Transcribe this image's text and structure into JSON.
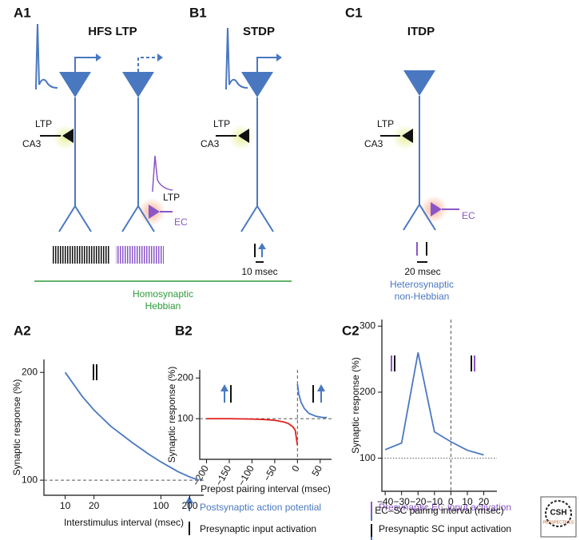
{
  "panel_labels": [
    "A1",
    "B1",
    "C1",
    "A2",
    "B2",
    "C2"
  ],
  "diagram": {
    "a1_title": "HFS LTP",
    "b1_title": "STDP",
    "c1_title": "ITDP",
    "ltp": "LTP",
    "ca3": "CA3",
    "ec": "EC",
    "scale_b": "10 msec",
    "scale_c": "20 msec",
    "homosynaptic": "Homosynaptic",
    "hebbian": "Hebbian",
    "heterosynaptic": "Heterosynaptic",
    "non_hebbian": "non-Hebbian"
  },
  "legend": [
    "Postsynaptic action potential",
    "Presynaptic input activation",
    "Presynaptic EC input activation",
    "Presynaptic SC input activation"
  ],
  "logo": {
    "name": "CSH",
    "sub": "PERSPECTIVES"
  },
  "chart_data": [
    {
      "type": "line",
      "x_label": "Interstimulus interval (msec)",
      "y_label": "Synaptic response (%)",
      "xscale": "log",
      "xlim": [
        6,
        280
      ],
      "ylim": [
        86,
        212
      ],
      "xticks": [
        10,
        20,
        100,
        200
      ],
      "yticks": [
        100,
        200
      ],
      "hline": 100,
      "series": [
        {
          "color": "#4a78c0",
          "x": [
            10,
            15,
            20,
            30,
            50,
            75,
            100,
            150,
            200,
            250
          ],
          "values": [
            200,
            178,
            165,
            150,
            135,
            124,
            117,
            108,
            103,
            100
          ]
        }
      ]
    },
    {
      "type": "line",
      "x_label": "Prepost pairing interval (msec)",
      "y_label": "Synaptic response (%)",
      "xlim": [
        -215,
        75
      ],
      "ylim": [
        0,
        220
      ],
      "xticks": [
        {
          "value": -200,
          "label": "−200"
        },
        {
          "value": -150,
          "label": "−150"
        },
        {
          "value": -100,
          "label": "−100"
        },
        {
          "value": -50,
          "label": "−50"
        },
        0,
        50
      ],
      "yticks": [
        100,
        200
      ],
      "hline": 100,
      "vline": 0,
      "series": [
        {
          "color": "#e0201b",
          "x": [
            -200,
            -150,
            -100,
            -75,
            -50,
            -30,
            -20,
            -10,
            -5,
            0
          ],
          "values": [
            100,
            100,
            99,
            98,
            96,
            92,
            88,
            80,
            72,
            35
          ]
        },
        {
          "color": "#4a78c0",
          "x": [
            0,
            3,
            8,
            15,
            25,
            40,
            55,
            65
          ],
          "values": [
            185,
            160,
            140,
            125,
            113,
            106,
            103,
            103
          ]
        }
      ]
    },
    {
      "type": "line",
      "x_label": "EC–SC pairing interval (msec)",
      "y_label": "Synaptic response (%)",
      "xlim": [
        -42,
        28
      ],
      "ylim": [
        50,
        310
      ],
      "xticks": [
        {
          "value": -40,
          "label": "−40"
        },
        {
          "value": -30,
          "label": "−30"
        },
        {
          "value": -20,
          "label": "−20"
        },
        {
          "value": -10,
          "label": "−10"
        },
        0,
        10,
        20
      ],
      "yticks": [
        100,
        200,
        300
      ],
      "hline": 100,
      "vline": 0,
      "series": [
        {
          "color": "#4a78c0",
          "x": [
            -40,
            -30,
            -20,
            -10,
            0,
            10,
            20
          ],
          "values": [
            113,
            123,
            260,
            140,
            125,
            112,
            105
          ]
        }
      ]
    }
  ]
}
